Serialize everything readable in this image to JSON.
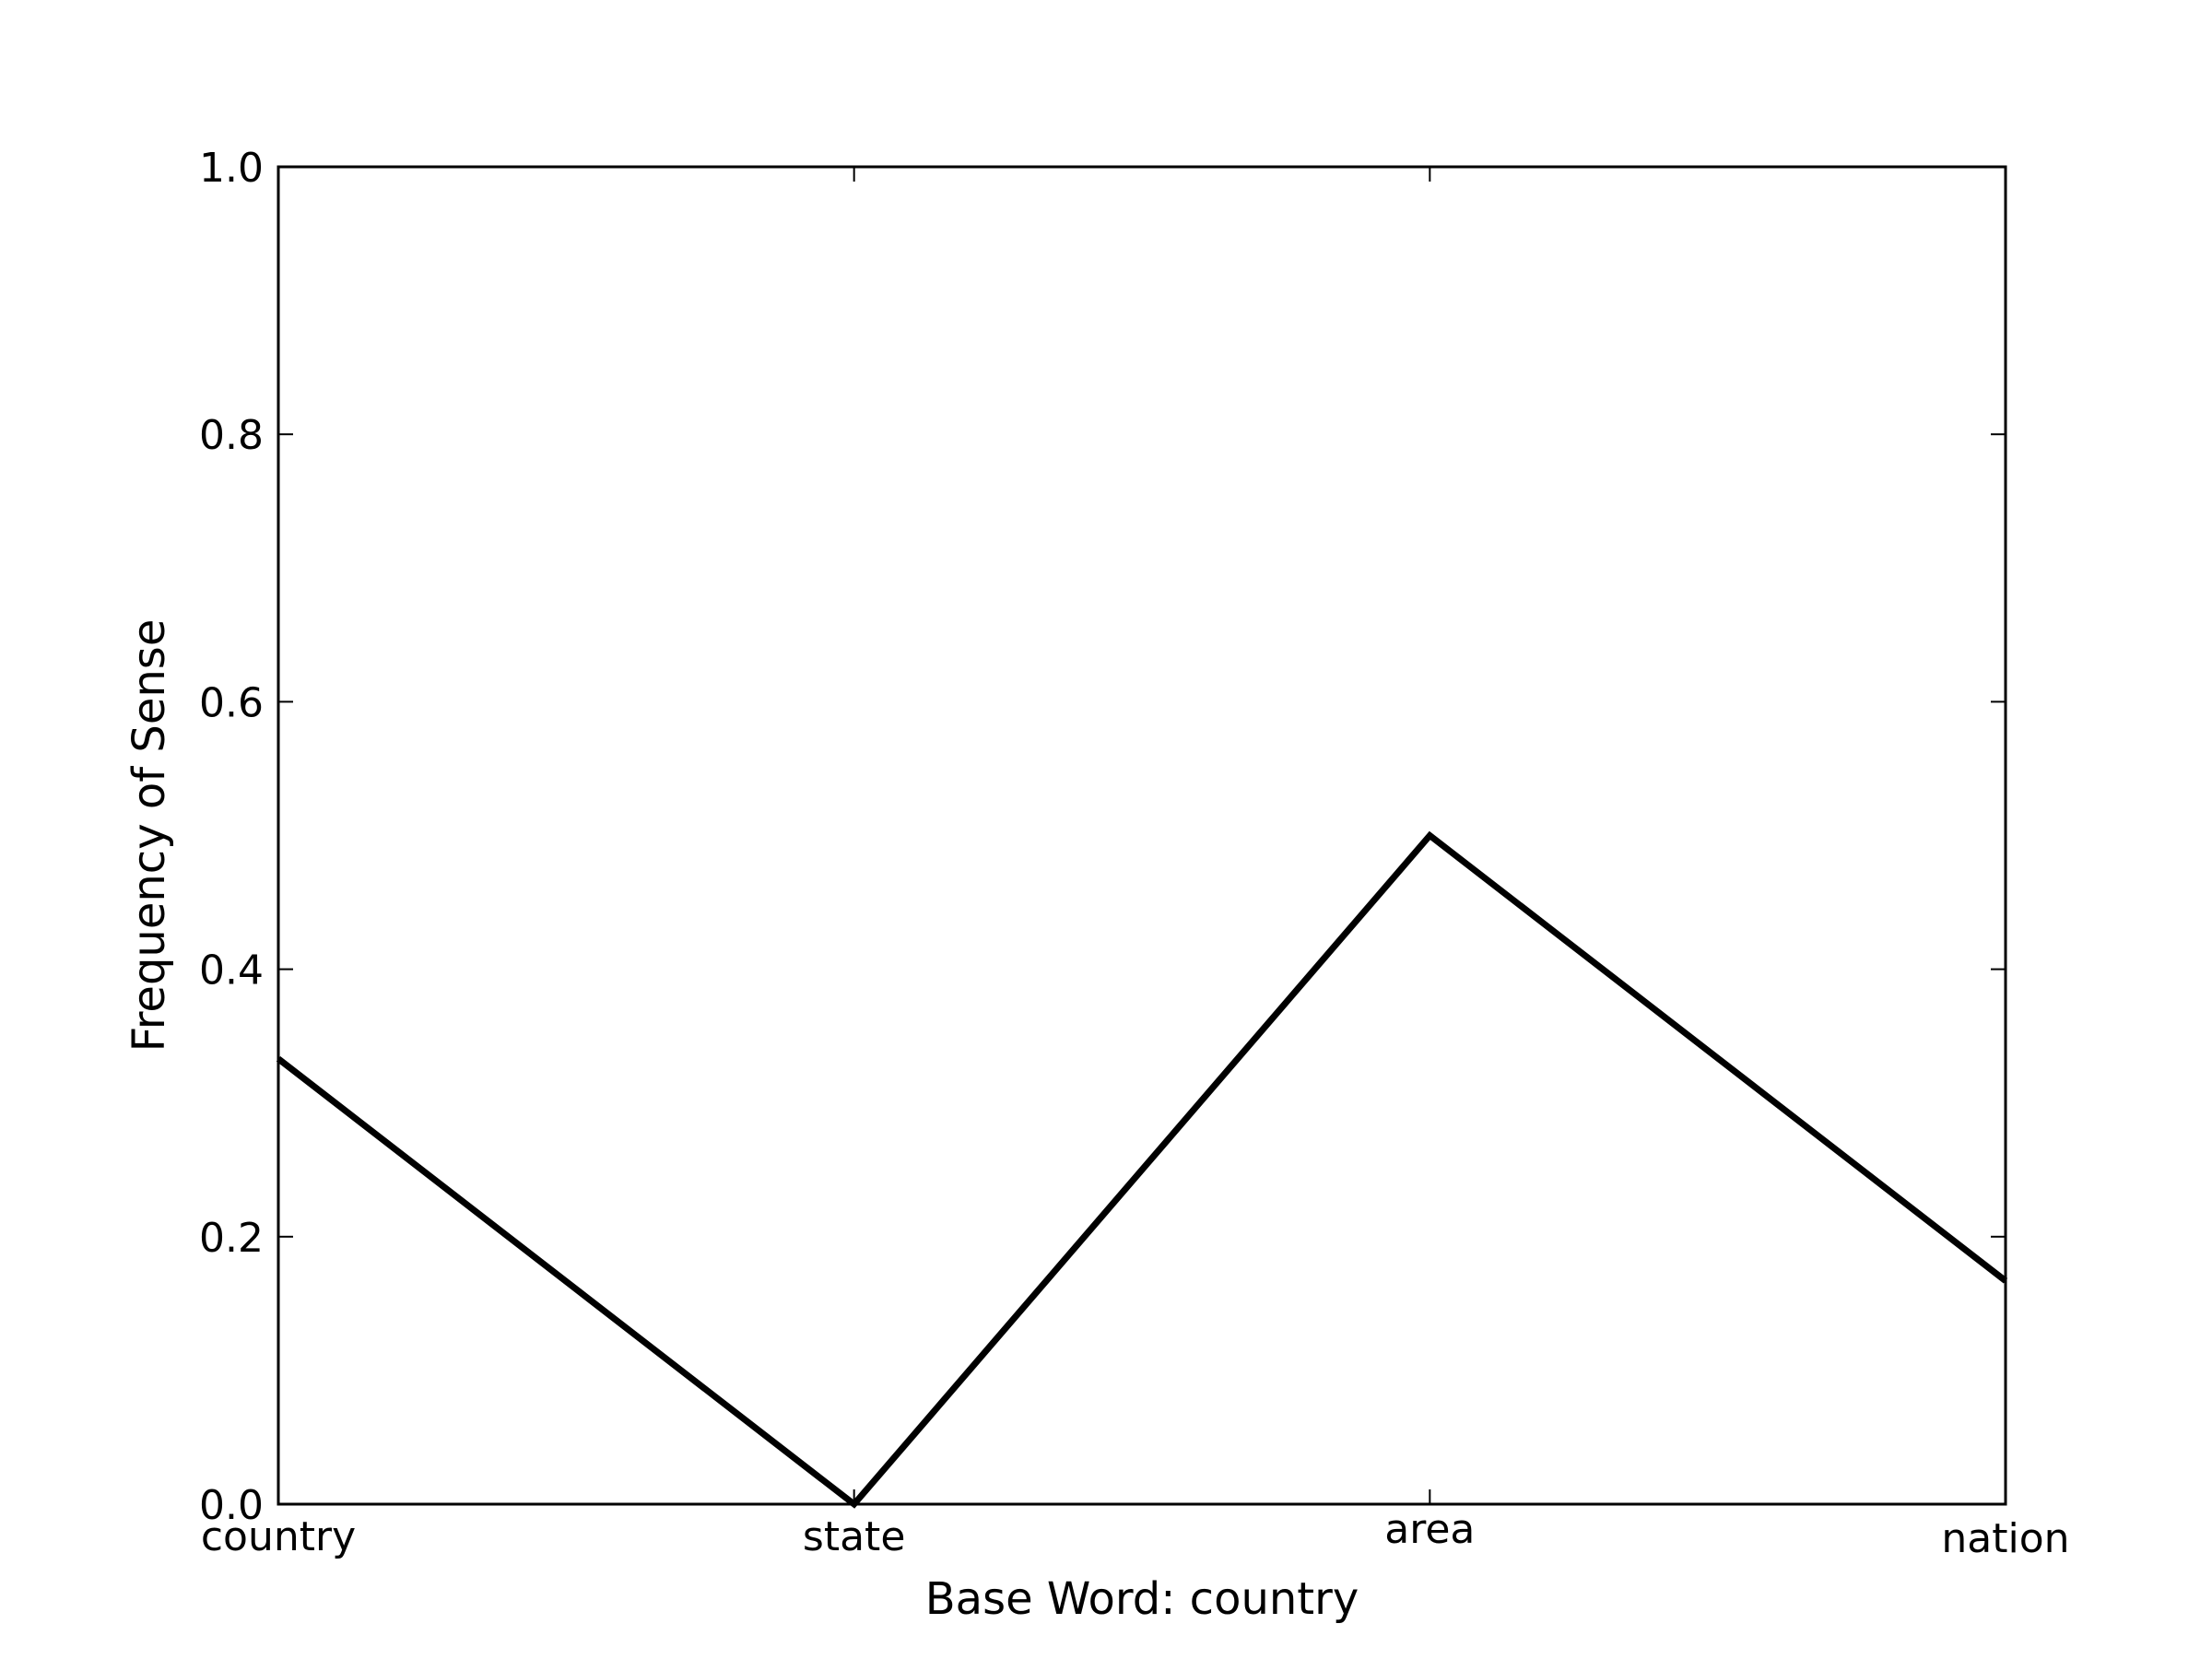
{
  "chart_data": {
    "type": "line",
    "categories": [
      "country",
      "state",
      "area",
      "nation"
    ],
    "series": [
      {
        "values": [
          0.333,
          0.0,
          0.5,
          0.167
        ]
      }
    ],
    "xlabel": "Base Word: country",
    "ylabel": "Frequency of Sense",
    "ylim": [
      0,
      1.0
    ],
    "yticks": [
      "0.0",
      "0.2",
      "0.4",
      "0.6",
      "0.8",
      "1.0"
    ],
    "grid": false,
    "line_color": "#000000"
  }
}
